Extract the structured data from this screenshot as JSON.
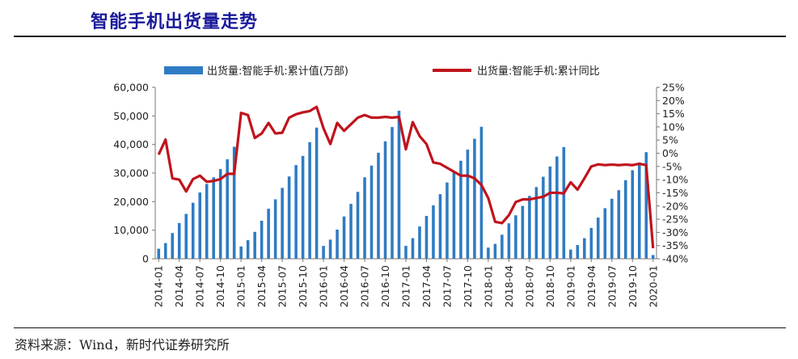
{
  "header": {
    "title": "智能手机出货量走势"
  },
  "footer": {
    "source": "资料来源：Wind，新时代证券研究所"
  },
  "colors": {
    "bar": "#2e7bc4",
    "line": "#c0131c",
    "title": "#1a1a9c"
  },
  "chart_data": {
    "type": "bar+line",
    "legend_position": "top",
    "grid": false,
    "x": [
      "2014-01",
      "2014-02",
      "2014-03",
      "2014-04",
      "2014-05",
      "2014-06",
      "2014-07",
      "2014-08",
      "2014-09",
      "2014-10",
      "2014-11",
      "2014-12",
      "2015-01",
      "2015-02",
      "2015-03",
      "2015-04",
      "2015-05",
      "2015-06",
      "2015-07",
      "2015-08",
      "2015-09",
      "2015-10",
      "2015-11",
      "2015-12",
      "2016-01",
      "2016-02",
      "2016-03",
      "2016-04",
      "2016-05",
      "2016-06",
      "2016-07",
      "2016-08",
      "2016-09",
      "2016-10",
      "2016-11",
      "2016-12",
      "2017-01",
      "2017-02",
      "2017-03",
      "2017-04",
      "2017-05",
      "2017-06",
      "2017-07",
      "2017-08",
      "2017-09",
      "2017-10",
      "2017-11",
      "2017-12",
      "2018-01",
      "2018-02",
      "2018-03",
      "2018-04",
      "2018-05",
      "2018-06",
      "2018-07",
      "2018-08",
      "2018-09",
      "2018-10",
      "2018-11",
      "2018-12",
      "2019-01",
      "2019-02",
      "2019-03",
      "2019-04",
      "2019-05",
      "2019-06",
      "2019-07",
      "2019-08",
      "2019-09",
      "2019-10",
      "2019-11",
      "2019-12",
      "2020-01"
    ],
    "x_tick_labels": [
      "2014-01",
      "2014-04",
      "2014-07",
      "2014-10",
      "2015-01",
      "2015-04",
      "2015-07",
      "2015-10",
      "2016-01",
      "2016-04",
      "2016-07",
      "2016-10",
      "2017-01",
      "2017-04",
      "2017-07",
      "2017-10",
      "2018-01",
      "2018-04",
      "2018-07",
      "2018-10",
      "2019-01",
      "2019-04",
      "2019-07",
      "2019-10",
      "2020-01"
    ],
    "y_left": {
      "lim": [
        0,
        60000
      ],
      "ticks": [
        "0",
        "10,000",
        "20,000",
        "30,000",
        "40,000",
        "50,000",
        "60,000"
      ]
    },
    "y_right": {
      "lim": [
        -40,
        25
      ],
      "ticks": [
        "25%",
        "20%",
        "15%",
        "10%",
        "5%",
        "0%",
        "-5%",
        "-10%",
        "-15%",
        "-20%",
        "-25%",
        "-30%",
        "-35%",
        "-40%"
      ]
    },
    "series": [
      {
        "name": "出货量:智能手机:累计值(万部)",
        "type": "bar",
        "axis": "left",
        "values": [
          3500,
          5500,
          9000,
          12500,
          15700,
          19600,
          23200,
          26200,
          28500,
          31400,
          34800,
          39200,
          4300,
          6500,
          9400,
          13300,
          17500,
          20800,
          24800,
          28800,
          32800,
          36000,
          40800,
          45900,
          4500,
          6700,
          10200,
          14800,
          19200,
          23400,
          28500,
          32600,
          37100,
          41100,
          46100,
          51800,
          4500,
          7200,
          11300,
          15000,
          18700,
          22600,
          26700,
          30600,
          34300,
          38200,
          42000,
          46200,
          3900,
          5200,
          8400,
          12400,
          15200,
          18500,
          22000,
          25100,
          28700,
          32300,
          35800,
          39100,
          3200,
          4800,
          7200,
          10800,
          14400,
          17700,
          21000,
          24000,
          27500,
          31000,
          33700,
          37300,
          1300
        ]
      },
      {
        "name": "出货量:智能手机:累计同比",
        "type": "line",
        "axis": "right",
        "values": [
          -0.5,
          5.2,
          -9.5,
          -10,
          -14.5,
          -9.8,
          -8.5,
          -10.8,
          -10.5,
          -9.8,
          -7.8,
          -7.8,
          15.3,
          14.5,
          5.8,
          7.5,
          11.5,
          7.5,
          7.8,
          13.5,
          14.8,
          15.5,
          16,
          17.6,
          9.5,
          3.5,
          11.5,
          8.5,
          11,
          13.5,
          14.5,
          13.5,
          13.5,
          13.8,
          13.5,
          13.8,
          1.5,
          11.8,
          6.5,
          3.5,
          -3.5,
          -4,
          -5.5,
          -7,
          -8.5,
          -8.5,
          -9.5,
          -12,
          -17,
          -26,
          -26.5,
          -23.5,
          -18.5,
          -17.5,
          -17.5,
          -17,
          -16.5,
          -15,
          -15,
          -15.2,
          -11,
          -13.8,
          -9.5,
          -5,
          -4.2,
          -4.5,
          -4.3,
          -4.5,
          -4.3,
          -4.5,
          -4,
          -4.5,
          -36
        ]
      }
    ]
  }
}
